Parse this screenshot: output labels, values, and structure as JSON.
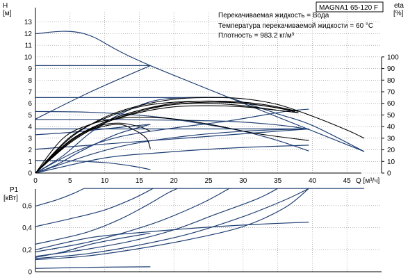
{
  "colors": {
    "curve": "#1f3f73",
    "eta": "#000000",
    "axis": "#000000",
    "grid": "#8a8a8a",
    "background": "#ffffff"
  },
  "header": {
    "title": "MAGNA1 65-120 F",
    "info": [
      "Перекачиваемая жидкость = Вода",
      "Температура перекачиваемой жидкости = 60 °C",
      "Плотность = 983.2 кг/м³"
    ]
  },
  "chart_data": [
    {
      "type": "line",
      "panel": "head",
      "ylabel_lines": [
        "H",
        "[м]"
      ],
      "ylabel_right_lines": [
        "eta",
        "[%]"
      ],
      "xlabel": "Q [м³/ч]",
      "xlim": [
        0,
        50
      ],
      "ylim": [
        0,
        14
      ],
      "ylim_right": [
        0,
        140
      ],
      "x_ticks": [
        0,
        5,
        10,
        15,
        20,
        25,
        30,
        35,
        40,
        45
      ],
      "y_ticks": [
        0,
        1,
        2,
        3,
        4,
        5,
        6,
        7,
        8,
        9,
        10,
        11,
        12,
        13
      ],
      "y_right_ticks": [
        0,
        10,
        20,
        30,
        40,
        50,
        60,
        70,
        80,
        90,
        100
      ],
      "grid": true,
      "series": [
        {
          "kind": "pump",
          "points": [
            [
              0,
              12
            ],
            [
              7,
              12
            ],
            [
              16.6,
              9.25
            ],
            [
              47.5,
              1.85
            ]
          ]
        },
        {
          "kind": "pump",
          "points": [
            [
              0,
              9.25
            ],
            [
              16.6,
              9.25
            ]
          ]
        },
        {
          "kind": "pump",
          "points": [
            [
              0,
              6.5
            ],
            [
              28,
              6.5
            ]
          ]
        },
        {
          "kind": "pump",
          "points": [
            [
              0,
              5.3
            ],
            [
              7,
              5.25
            ],
            [
              12,
              5.1
            ],
            [
              18,
              4.8
            ],
            [
              25,
              4.15
            ],
            [
              30,
              3.6
            ],
            [
              35,
              2.8
            ],
            [
              39.5,
              1.9
            ]
          ]
        },
        {
          "kind": "pump",
          "points": [
            [
              0,
              4.6
            ],
            [
              10,
              4.6
            ],
            [
              20,
              4.55
            ],
            [
              28,
              4.45
            ],
            [
              33,
              4.25
            ],
            [
              37,
              4.0
            ],
            [
              39.5,
              3.75
            ]
          ]
        },
        {
          "kind": "pump",
          "points": [
            [
              0,
              3.8
            ],
            [
              39.5,
              3.8
            ]
          ]
        },
        {
          "kind": "pump",
          "points": [
            [
              0,
              2.05
            ],
            [
              39.5,
              3.8
            ]
          ]
        },
        {
          "kind": "pump",
          "points": [
            [
              0,
              3.3
            ],
            [
              5,
              3.5
            ],
            [
              10,
              3.8
            ],
            [
              16.6,
              4.2
            ]
          ]
        },
        {
          "kind": "pump",
          "points": [
            [
              0,
              1.1
            ],
            [
              5,
              1.05
            ],
            [
              10,
              0.9
            ],
            [
              14,
              0.6
            ],
            [
              16.6,
              0.3
            ]
          ]
        },
        {
          "kind": "pump",
          "points": [
            [
              0,
              4.65
            ],
            [
              8,
              7.0
            ],
            [
              16.6,
              9.25
            ]
          ]
        },
        {
          "kind": "pump",
          "points": [
            [
              0,
              0
            ],
            [
              4,
              1.5
            ],
            [
              8,
              3.5
            ],
            [
              12,
              5.0
            ],
            [
              17,
              6.2
            ],
            [
              22,
              6.5
            ],
            [
              28,
              6.5
            ]
          ]
        },
        {
          "kind": "pump",
          "points": [
            [
              0,
              0
            ],
            [
              6,
              1.9
            ],
            [
              12,
              3.1
            ],
            [
              19,
              3.8
            ],
            [
              28,
              4.5
            ],
            [
              36,
              5.3
            ],
            [
              39.5,
              5.5
            ]
          ]
        },
        {
          "kind": "pump",
          "points": [
            [
              0,
              0
            ],
            [
              8,
              1.6
            ],
            [
              14,
              2.5
            ],
            [
              22,
              3.2
            ],
            [
              30,
              3.6
            ],
            [
              36,
              3.75
            ],
            [
              39.5,
              3.8
            ]
          ]
        },
        {
          "kind": "pump",
          "points": [
            [
              0,
              0
            ],
            [
              10,
              1.3
            ],
            [
              18,
              1.75
            ],
            [
              25,
              2.05
            ],
            [
              32,
              2.25
            ],
            [
              39.5,
              2.4
            ]
          ]
        },
        {
          "kind": "pump",
          "points": [
            [
              0,
              0
            ],
            [
              3,
              0.7
            ],
            [
              6,
              1.7
            ],
            [
              9,
              2.6
            ],
            [
              12,
              3.4
            ],
            [
              16.6,
              4.2
            ]
          ]
        },
        {
          "kind": "pump",
          "points": [
            [
              28,
              6.5
            ],
            [
              35,
              5.1
            ],
            [
              40,
              4.1
            ],
            [
              47.5,
              1.85
            ]
          ]
        },
        {
          "kind": "eta",
          "points": [
            [
              0,
              0
            ],
            [
              5,
              30
            ],
            [
              10,
              48
            ],
            [
              15,
              58
            ],
            [
              20,
              63.5
            ],
            [
              25,
              65
            ],
            [
              30,
              64
            ],
            [
              35,
              59
            ],
            [
              40,
              49
            ],
            [
              45,
              37
            ],
            [
              47.5,
              30
            ]
          ]
        },
        {
          "kind": "eta",
          "points": [
            [
              0,
              0
            ],
            [
              5,
              28
            ],
            [
              10,
              44
            ],
            [
              15,
              54
            ],
            [
              20,
              60
            ],
            [
              25,
              62
            ],
            [
              30,
              60
            ],
            [
              34,
              57
            ],
            [
              37.5,
              53
            ]
          ]
        },
        {
          "kind": "eta",
          "points": [
            [
              0,
              0
            ],
            [
              5,
              26
            ],
            [
              10,
              43
            ],
            [
              15,
              53
            ],
            [
              20,
              59
            ],
            [
              25,
              61
            ],
            [
              30,
              60
            ],
            [
              34,
              57
            ],
            [
              37.5,
              53
            ]
          ]
        },
        {
          "kind": "eta",
          "points": [
            [
              0,
              0
            ],
            [
              5,
              31
            ],
            [
              10,
              47
            ],
            [
              15,
              57
            ],
            [
              20,
              61
            ],
            [
              25,
              62
            ],
            [
              30,
              61
            ],
            [
              34,
              58
            ],
            [
              38,
              53
            ]
          ]
        },
        {
          "kind": "eta",
          "points": [
            [
              0,
              0
            ],
            [
              5,
              27
            ],
            [
              10,
              44
            ],
            [
              15,
              54
            ],
            [
              20,
              59
            ],
            [
              25,
              60
            ],
            [
              30,
              58
            ],
            [
              35,
              54
            ],
            [
              38,
              52
            ]
          ]
        },
        {
          "kind": "eta",
          "points": [
            [
              0,
              0
            ],
            [
              5,
              26
            ],
            [
              10,
              43
            ],
            [
              15,
              52
            ],
            [
              20,
              57
            ],
            [
              25,
              58
            ],
            [
              30,
              57
            ],
            [
              35,
              54
            ],
            [
              38,
              52
            ]
          ]
        },
        {
          "kind": "eta",
          "points": [
            [
              0,
              0
            ],
            [
              4,
              30
            ],
            [
              8,
              42
            ],
            [
              12,
              47
            ],
            [
              16,
              48
            ],
            [
              21,
              46
            ],
            [
              26,
              41
            ],
            [
              32,
              34
            ],
            [
              39.5,
              28
            ]
          ]
        },
        {
          "kind": "eta",
          "points": [
            [
              0,
              0
            ],
            [
              3,
              18
            ],
            [
              6,
              32
            ],
            [
              9,
              39
            ],
            [
              12,
              42
            ],
            [
              14,
              38
            ],
            [
              16,
              30
            ],
            [
              16.6,
              21
            ]
          ]
        },
        {
          "kind": "eta",
          "points": [
            [
              0,
              0
            ],
            [
              5,
              28
            ],
            [
              9,
              40
            ],
            [
              12,
              43
            ],
            [
              15,
              40
            ],
            [
              16.6,
              36
            ]
          ]
        }
      ]
    },
    {
      "type": "line",
      "panel": "power",
      "ylabel_lines": [
        "P1",
        "[кВт]"
      ],
      "xlim": [
        0,
        50
      ],
      "ylim": [
        0,
        0.75
      ],
      "y_ticks": [
        0,
        0.2,
        0.4,
        0.6
      ],
      "y_tick_labels": [
        "0",
        "0,2",
        "0,4",
        "0,6"
      ],
      "x_ticks": [
        0,
        5,
        10,
        15,
        20,
        25,
        30,
        35,
        40,
        45
      ],
      "grid": true,
      "series": [
        {
          "kind": "pump",
          "points": [
            [
              7,
              0.755
            ],
            [
              47.5,
              0.755
            ]
          ]
        },
        {
          "kind": "pump",
          "points": [
            [
              0,
              0.595
            ],
            [
              3,
              0.65
            ],
            [
              5.5,
              0.71
            ],
            [
              7,
              0.755
            ]
          ]
        },
        {
          "kind": "pump",
          "points": [
            [
              0,
              0.41
            ],
            [
              5,
              0.48
            ],
            [
              10,
              0.56
            ],
            [
              14,
              0.66
            ],
            [
              17,
              0.755
            ]
          ]
        },
        {
          "kind": "pump",
          "points": [
            [
              0,
              0.25
            ],
            [
              7,
              0.35
            ],
            [
              12,
              0.47
            ],
            [
              16,
              0.6
            ],
            [
              19,
              0.71
            ],
            [
              20.5,
              0.755
            ]
          ]
        },
        {
          "kind": "pump",
          "points": [
            [
              0,
              0.18
            ],
            [
              7,
              0.26
            ],
            [
              12,
              0.34
            ],
            [
              18,
              0.46
            ],
            [
              24,
              0.62
            ],
            [
              28,
              0.755
            ]
          ]
        },
        {
          "kind": "pump",
          "points": [
            [
              0,
              0.14
            ],
            [
              7,
              0.2
            ],
            [
              14,
              0.28
            ],
            [
              20,
              0.38
            ],
            [
              26,
              0.52
            ],
            [
              32,
              0.66
            ],
            [
              35,
              0.755
            ]
          ]
        },
        {
          "kind": "pump",
          "points": [
            [
              0,
              0.12
            ],
            [
              7,
              0.16
            ],
            [
              14,
              0.23
            ],
            [
              22,
              0.34
            ],
            [
              30,
              0.5
            ],
            [
              36,
              0.65
            ],
            [
              39.5,
              0.755
            ]
          ]
        },
        {
          "kind": "pump",
          "points": [
            [
              0,
              0.11
            ],
            [
              7,
              0.14
            ],
            [
              14,
              0.2
            ],
            [
              22,
              0.29
            ],
            [
              30,
              0.41
            ],
            [
              36,
              0.58
            ],
            [
              39.5,
              0.755
            ]
          ]
        },
        {
          "kind": "pump",
          "points": [
            [
              0,
              0.2
            ],
            [
              8,
              0.31
            ],
            [
              16,
              0.36
            ],
            [
              24,
              0.4
            ],
            [
              32,
              0.43
            ],
            [
              39.5,
              0.45
            ]
          ]
        },
        {
          "kind": "pump",
          "points": [
            [
              0,
              0.13
            ],
            [
              4,
              0.18
            ],
            [
              8,
              0.25
            ],
            [
              12,
              0.3
            ],
            [
              16.6,
              0.35
            ]
          ]
        },
        {
          "kind": "pump",
          "points": [
            [
              0,
              0.03
            ],
            [
              8,
              0.04
            ],
            [
              16.6,
              0.045
            ]
          ]
        }
      ]
    }
  ]
}
